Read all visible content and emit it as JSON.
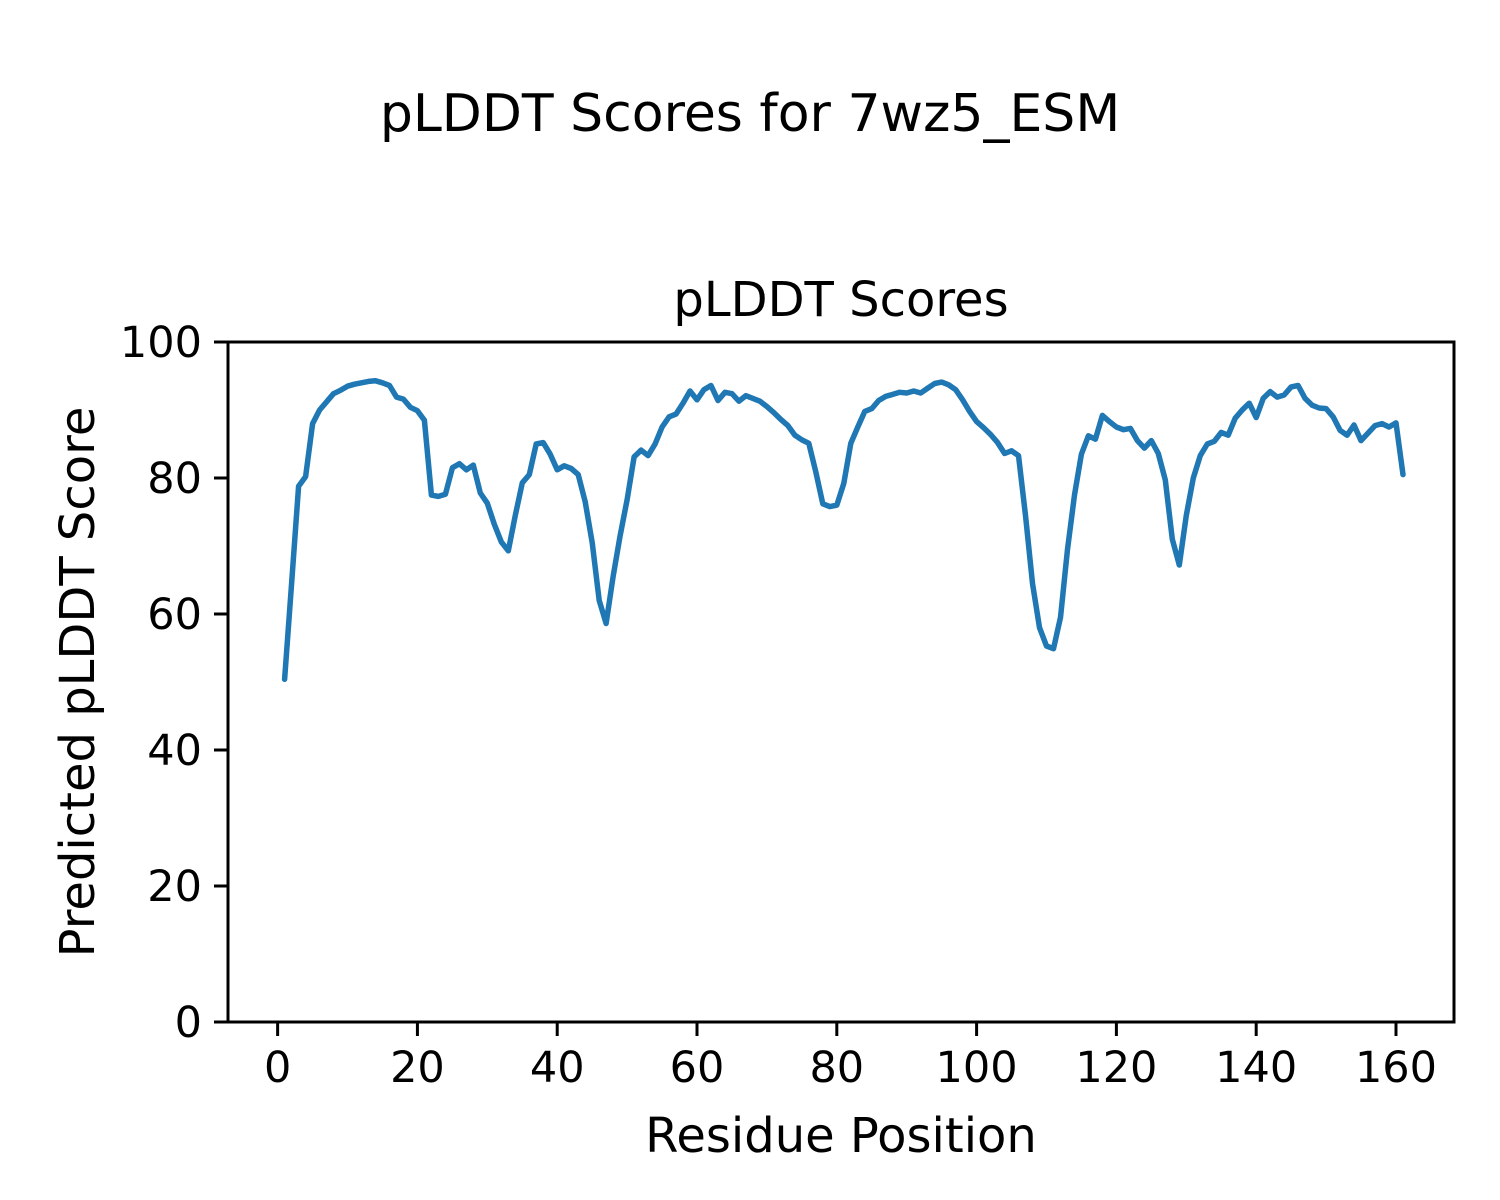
{
  "figure": {
    "suptitle": "pLDDT Scores for 7wz5_ESM",
    "background": "#ffffff"
  },
  "chart_data": {
    "type": "line",
    "title": "pLDDT Scores",
    "xlabel": "Residue Position",
    "ylabel": "Predicted pLDDT Score",
    "x_ticks": [
      0,
      20,
      40,
      60,
      80,
      100,
      120,
      140,
      160
    ],
    "y_ticks": [
      0,
      20,
      40,
      60,
      80,
      100
    ],
    "xlim": [
      -7.1,
      168.3
    ],
    "ylim": [
      0,
      100
    ],
    "grid": false,
    "legend_position": "none",
    "line_color": "#1f77b4",
    "axis_color": "#000000",
    "series": [
      {
        "name": "pLDDT",
        "x_start": 1,
        "values": [
          50.4,
          64.5,
          78.8,
          80.2,
          88.0,
          90.0,
          91.2,
          92.4,
          92.9,
          93.5,
          93.8,
          94.0,
          94.2,
          94.3,
          94.0,
          93.6,
          91.9,
          91.6,
          90.4,
          89.9,
          88.5,
          77.5,
          77.3,
          77.6,
          81.5,
          82.1,
          81.2,
          81.9,
          77.8,
          76.3,
          73.2,
          70.6,
          69.3,
          74.5,
          79.3,
          80.5,
          85.0,
          85.2,
          83.5,
          81.2,
          81.8,
          81.4,
          80.5,
          76.5,
          70.5,
          62.0,
          58.6,
          65.5,
          71.5,
          76.8,
          83.1,
          84.1,
          83.3,
          85.0,
          87.5,
          89.0,
          89.4,
          91.0,
          92.8,
          91.5,
          93.0,
          93.6,
          91.4,
          92.6,
          92.4,
          91.3,
          92.1,
          91.7,
          91.3,
          90.5,
          89.6,
          88.6,
          87.7,
          86.3,
          85.6,
          85.1,
          80.9,
          76.2,
          75.8,
          76.0,
          79.2,
          85.1,
          87.5,
          89.8,
          90.2,
          91.4,
          92.0,
          92.3,
          92.6,
          92.5,
          92.8,
          92.5,
          93.2,
          93.9,
          94.1,
          93.7,
          93.0,
          91.5,
          89.8,
          88.3,
          87.4,
          86.4,
          85.2,
          83.6,
          84.0,
          83.3,
          74.5,
          64.5,
          58.0,
          55.3,
          54.9,
          59.5,
          69.5,
          77.5,
          83.5,
          86.2,
          85.7,
          89.2,
          88.3,
          87.5,
          87.1,
          87.3,
          85.5,
          84.4,
          85.5,
          83.6,
          79.7,
          71.0,
          67.2,
          74.5,
          80.0,
          83.3,
          85.0,
          85.4,
          86.7,
          86.3,
          88.8,
          90.0,
          91.0,
          88.9,
          91.7,
          92.7,
          91.9,
          92.2,
          93.4,
          93.6,
          91.7,
          90.7,
          90.3,
          90.2,
          89.0,
          87.0,
          86.3,
          87.8,
          85.5,
          86.6,
          87.7,
          88.0,
          87.5,
          88.1,
          80.5
        ]
      }
    ]
  }
}
